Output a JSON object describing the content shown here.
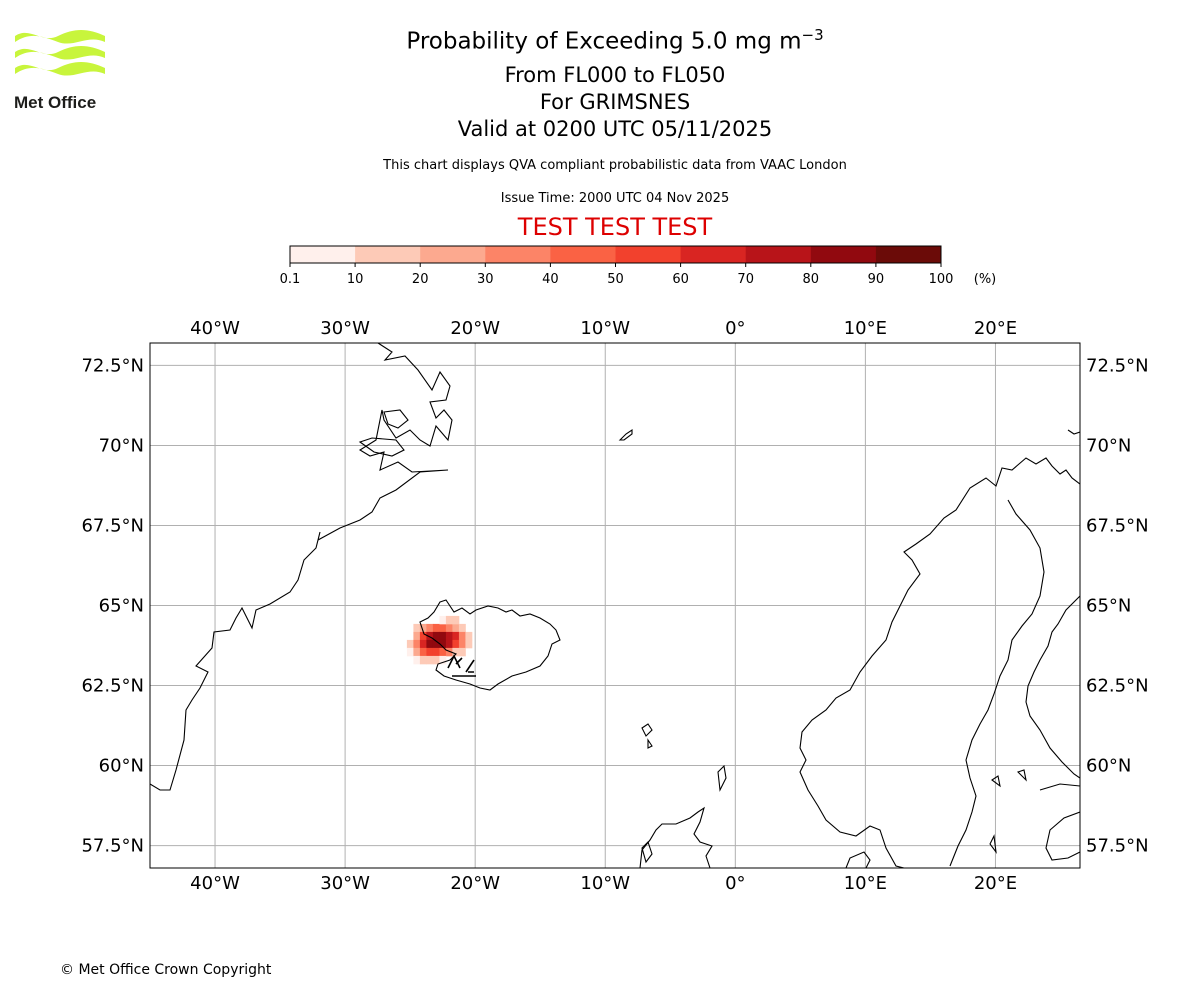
{
  "title": {
    "main_prefix": "Probability of Exceeding 5.0 mg m",
    "main_sup": "−3",
    "line2": "From FL000 to FL050",
    "line3": "For GRIMSNES",
    "line4": "Valid at 0200 UTC 05/11/2025"
  },
  "subtitle": "This chart displays QVA compliant probabilistic data from VAAC London",
  "issue_time": "Issue Time: 2000 UTC 04 Nov 2025",
  "test_banner": "TEST TEST TEST",
  "logo_text": "Met Office",
  "copyright": "© Met Office Crown Copyright",
  "colors": {
    "test_banner": "#dd0000",
    "logo_green": "#c8f53c",
    "logo_text": "#1d1d1b",
    "grid": "#b0b0b0",
    "coast": "#000000"
  },
  "colorbar": {
    "unit_label": "(%)",
    "ticks": [
      "0.1",
      "10",
      "20",
      "30",
      "40",
      "50",
      "60",
      "70",
      "80",
      "90",
      "100"
    ],
    "colors": [
      "#fff0ec",
      "#fdcab7",
      "#fca98f",
      "#fc8467",
      "#fa6244",
      "#f2412d",
      "#d92522",
      "#b81419",
      "#91090f",
      "#6b0b08"
    ]
  },
  "map": {
    "lon_range": [
      -45,
      26.5
    ],
    "lat_range": [
      56.8,
      73.2
    ],
    "lon_ticks": [
      {
        "value": -40,
        "label": "40°W"
      },
      {
        "value": -30,
        "label": "30°W"
      },
      {
        "value": -20,
        "label": "20°W"
      },
      {
        "value": -10,
        "label": "10°W"
      },
      {
        "value": 0,
        "label": "0°"
      },
      {
        "value": 10,
        "label": "10°E"
      },
      {
        "value": 20,
        "label": "20°E"
      }
    ],
    "lat_ticks": [
      {
        "value": 72.5,
        "label": "72.5°N"
      },
      {
        "value": 70,
        "label": "70°N"
      },
      {
        "value": 67.5,
        "label": "67.5°N"
      },
      {
        "value": 65,
        "label": "65°N"
      },
      {
        "value": 62.5,
        "label": "62.5°N"
      },
      {
        "value": 60,
        "label": "60°N"
      },
      {
        "value": 57.5,
        "label": "57.5°N"
      }
    ],
    "probability_cells": [
      {
        "lon": -24.5,
        "lat": 64.3,
        "p": 12
      },
      {
        "lon": -24.0,
        "lat": 64.3,
        "p": 22
      },
      {
        "lon": -23.5,
        "lat": 64.3,
        "p": 35
      },
      {
        "lon": -23.0,
        "lat": 64.3,
        "p": 45
      },
      {
        "lon": -22.5,
        "lat": 64.3,
        "p": 40
      },
      {
        "lon": -22.0,
        "lat": 64.3,
        "p": 32
      },
      {
        "lon": -21.5,
        "lat": 64.3,
        "p": 25
      },
      {
        "lon": -21.0,
        "lat": 64.3,
        "p": 15
      },
      {
        "lon": -24.5,
        "lat": 64.05,
        "p": 28
      },
      {
        "lon": -24.0,
        "lat": 64.05,
        "p": 55
      },
      {
        "lon": -23.5,
        "lat": 64.05,
        "p": 72
      },
      {
        "lon": -23.0,
        "lat": 64.05,
        "p": 82
      },
      {
        "lon": -22.5,
        "lat": 64.05,
        "p": 85
      },
      {
        "lon": -22.0,
        "lat": 64.05,
        "p": 78
      },
      {
        "lon": -21.5,
        "lat": 64.05,
        "p": 62
      },
      {
        "lon": -21.0,
        "lat": 64.05,
        "p": 35
      },
      {
        "lon": -20.5,
        "lat": 64.05,
        "p": 12
      },
      {
        "lon": -25.0,
        "lat": 63.8,
        "p": 15
      },
      {
        "lon": -24.5,
        "lat": 63.8,
        "p": 35
      },
      {
        "lon": -24.0,
        "lat": 63.8,
        "p": 65
      },
      {
        "lon": -23.5,
        "lat": 63.8,
        "p": 80
      },
      {
        "lon": -23.0,
        "lat": 63.8,
        "p": 88
      },
      {
        "lon": -22.5,
        "lat": 63.8,
        "p": 85
      },
      {
        "lon": -22.0,
        "lat": 63.8,
        "p": 76
      },
      {
        "lon": -21.5,
        "lat": 63.8,
        "p": 55
      },
      {
        "lon": -21.0,
        "lat": 63.8,
        "p": 30
      },
      {
        "lon": -20.5,
        "lat": 63.8,
        "p": 14
      },
      {
        "lon": -25.0,
        "lat": 63.55,
        "p": 8
      },
      {
        "lon": -24.5,
        "lat": 63.55,
        "p": 22
      },
      {
        "lon": -24.0,
        "lat": 63.55,
        "p": 42
      },
      {
        "lon": -23.5,
        "lat": 63.55,
        "p": 55
      },
      {
        "lon": -23.0,
        "lat": 63.55,
        "p": 50
      },
      {
        "lon": -22.5,
        "lat": 63.55,
        "p": 42
      },
      {
        "lon": -22.0,
        "lat": 63.55,
        "p": 30
      },
      {
        "lon": -21.5,
        "lat": 63.55,
        "p": 18
      },
      {
        "lon": -21.0,
        "lat": 63.55,
        "p": 10
      },
      {
        "lon": -24.5,
        "lat": 63.3,
        "p": 8
      },
      {
        "lon": -24.0,
        "lat": 63.3,
        "p": 15
      },
      {
        "lon": -23.5,
        "lat": 63.3,
        "p": 12
      },
      {
        "lon": -23.0,
        "lat": 63.3,
        "p": 10
      },
      {
        "lon": -22.5,
        "lat": 63.3,
        "p": 6
      },
      {
        "lon": -22.5,
        "lat": 64.55,
        "p": 8
      },
      {
        "lon": -22.0,
        "lat": 64.55,
        "p": 12
      },
      {
        "lon": -21.5,
        "lat": 64.55,
        "p": 10
      }
    ]
  }
}
